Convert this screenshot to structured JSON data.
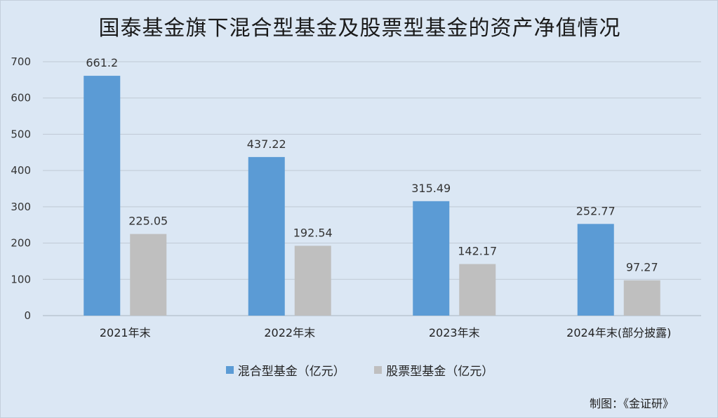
{
  "chart_data": {
    "type": "bar",
    "title": "国泰基金旗下混合型基金及股票型基金的资产净值情况",
    "categories": [
      "2021年末",
      "2022年末",
      "2023年末",
      "2024年末(部分披露)"
    ],
    "series": [
      {
        "name": "混合型基金（亿元）",
        "values": [
          661.2,
          437.22,
          315.49,
          252.77
        ],
        "labels": [
          "661.2",
          "437.22",
          "315.49",
          "252.77"
        ],
        "color": "#5b9bd5"
      },
      {
        "name": "股票型基金（亿元）",
        "values": [
          225.05,
          192.54,
          142.17,
          97.27
        ],
        "labels": [
          "225.05",
          "192.54",
          "142.17",
          "97.27"
        ],
        "color": "#bfbfbf"
      }
    ],
    "yticks": [
      "0",
      "100",
      "200",
      "300",
      "400",
      "500",
      "600",
      "700"
    ],
    "ylim": [
      0,
      700
    ],
    "grid": true,
    "legend": "bottom-center"
  },
  "credit": "制图：《金证研》",
  "colors": {
    "background": "#dbe7f4",
    "grid": "#bfc9d4"
  }
}
